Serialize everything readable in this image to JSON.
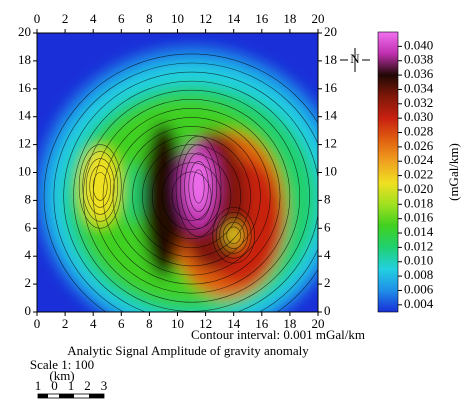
{
  "chart_data": {
    "type": "contour",
    "title": "Analytic Signal Amplitude of gravity anomaly",
    "annotation": "Contour interval: 0.001 mGal/km",
    "colorbar_label": "(mGal/km)",
    "north": "N",
    "scale_text": "Scale 1: 100",
    "scale_unit": "(km)",
    "scale_labels": [
      "1",
      "0",
      "1",
      "2",
      "3"
    ],
    "xlim": [
      0,
      20
    ],
    "ylim": [
      0,
      20
    ],
    "xticks": [
      0,
      2,
      4,
      6,
      8,
      10,
      12,
      14,
      16,
      18,
      20
    ],
    "yticks": [
      0,
      2,
      4,
      6,
      8,
      10,
      12,
      14,
      16,
      18,
      20
    ],
    "colorbar_lim": [
      0.003,
      0.042
    ],
    "colorbar_ticks": [
      {
        "value": 0.004,
        "label": "0.004"
      },
      {
        "value": 0.006,
        "label": "0.006"
      },
      {
        "value": 0.008,
        "label": "0.008"
      },
      {
        "value": 0.01,
        "label": "0.010"
      },
      {
        "value": 0.012,
        "label": "0.012"
      },
      {
        "value": 0.014,
        "label": "0.014"
      },
      {
        "value": 0.016,
        "label": "0.016"
      },
      {
        "value": 0.018,
        "label": "0.018"
      },
      {
        "value": 0.02,
        "label": "0.020"
      },
      {
        "value": 0.022,
        "label": "0.022"
      },
      {
        "value": 0.024,
        "label": "0.024"
      },
      {
        "value": 0.026,
        "label": "0.026"
      },
      {
        "value": 0.028,
        "label": "0.028"
      },
      {
        "value": 0.03,
        "label": "0.030"
      },
      {
        "value": 0.032,
        "label": "0.032"
      },
      {
        "value": 0.034,
        "label": "0.034"
      },
      {
        "value": 0.036,
        "label": "0.036"
      },
      {
        "value": 0.038,
        "label": "0.038"
      },
      {
        "value": 0.04,
        "label": "0.040"
      }
    ],
    "colormap": [
      "#1a2fd8",
      "#1f8fe8",
      "#22d0e0",
      "#20d070",
      "#40d020",
      "#a0e020",
      "#f0e020",
      "#f0a020",
      "#e06010",
      "#c82010",
      "#801808",
      "#200804",
      "#c030b0",
      "#f070f0"
    ]
  }
}
